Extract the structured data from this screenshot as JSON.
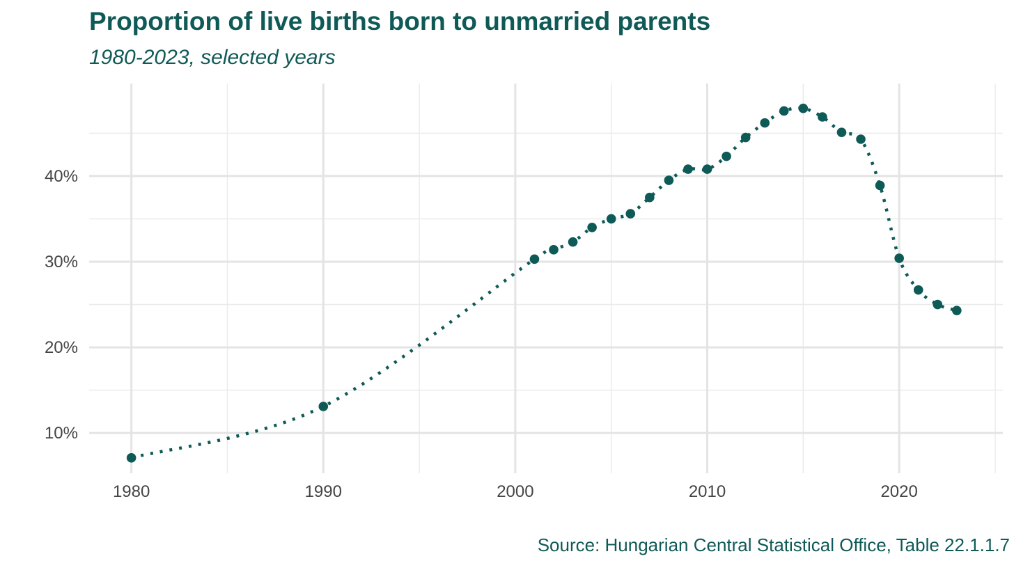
{
  "chart_data": {
    "type": "line",
    "title": "Proportion of live births born to unmarried parents",
    "subtitle": "1980-2023, selected years",
    "source": "Source: Hungarian Central Statistical Office, Table 22.1.1.7",
    "xlabel": "",
    "ylabel": "",
    "xlim": [
      1977.8,
      2025.4
    ],
    "ylim": [
      5.3,
      50.8
    ],
    "x_ticks": [
      1980,
      1990,
      2000,
      2010,
      2020
    ],
    "x_tick_labels": [
      "1980",
      "1990",
      "2000",
      "2010",
      "2020"
    ],
    "x_minor_ticks": [
      1985,
      1995,
      2005,
      2015,
      2025
    ],
    "y_ticks": [
      10,
      20,
      30,
      40
    ],
    "y_tick_labels": [
      "10%",
      "20%",
      "30%",
      "40%"
    ],
    "y_minor_ticks": [
      15,
      25,
      35,
      45
    ],
    "grid": true,
    "line_style": "dotted",
    "series_color": "#0d5a56",
    "series": [
      {
        "x": [
          1980,
          1990,
          2001,
          2002,
          2003,
          2004,
          2005,
          2006,
          2007,
          2008,
          2009,
          2010,
          2011,
          2012,
          2013,
          2014,
          2015,
          2016,
          2017,
          2018,
          2019,
          2020,
          2021,
          2022,
          2023
        ],
        "values": [
          7.1,
          13.1,
          30.3,
          31.4,
          32.3,
          34.0,
          35.0,
          35.6,
          37.5,
          39.5,
          40.8,
          40.8,
          42.3,
          44.5,
          46.2,
          47.6,
          47.9,
          46.9,
          45.1,
          44.3,
          38.9,
          30.4,
          26.7,
          25.0,
          24.3
        ]
      }
    ]
  }
}
